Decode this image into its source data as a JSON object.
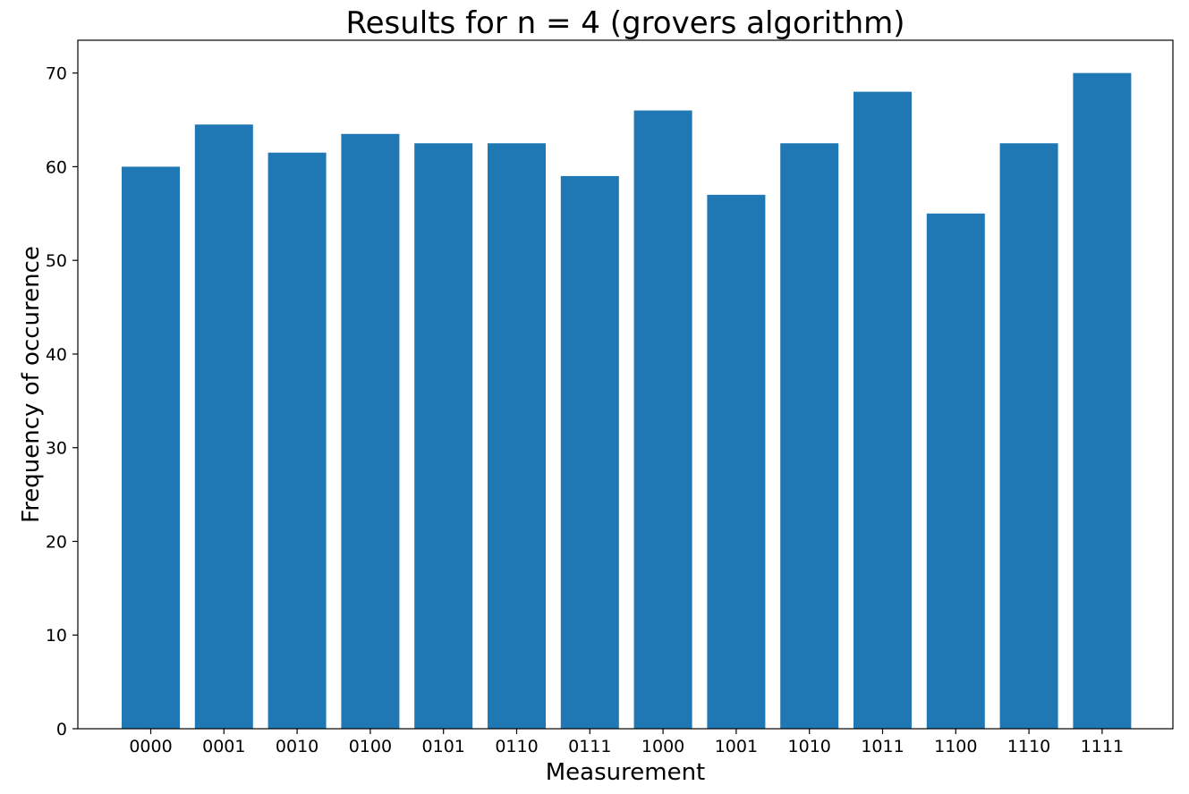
{
  "chart_data": {
    "type": "bar",
    "title": "Results for n = 4 (grovers algorithm)",
    "xlabel": "Measurement",
    "ylabel": "Frequency of occurence",
    "categories": [
      "0000",
      "0001",
      "0010",
      "0100",
      "0101",
      "0110",
      "0111",
      "1000",
      "1001",
      "1010",
      "1011",
      "1100",
      "1110",
      "1111"
    ],
    "values": [
      60,
      64.5,
      61.5,
      63.5,
      62.5,
      62.5,
      59,
      66,
      57,
      62.5,
      68,
      55,
      62.5,
      70
    ],
    "ylim": [
      0,
      73.5
    ],
    "yticks": [
      0,
      10,
      20,
      30,
      40,
      50,
      60,
      70
    ],
    "grid": false,
    "legend": "none",
    "bar_color": "#1f77b4"
  }
}
